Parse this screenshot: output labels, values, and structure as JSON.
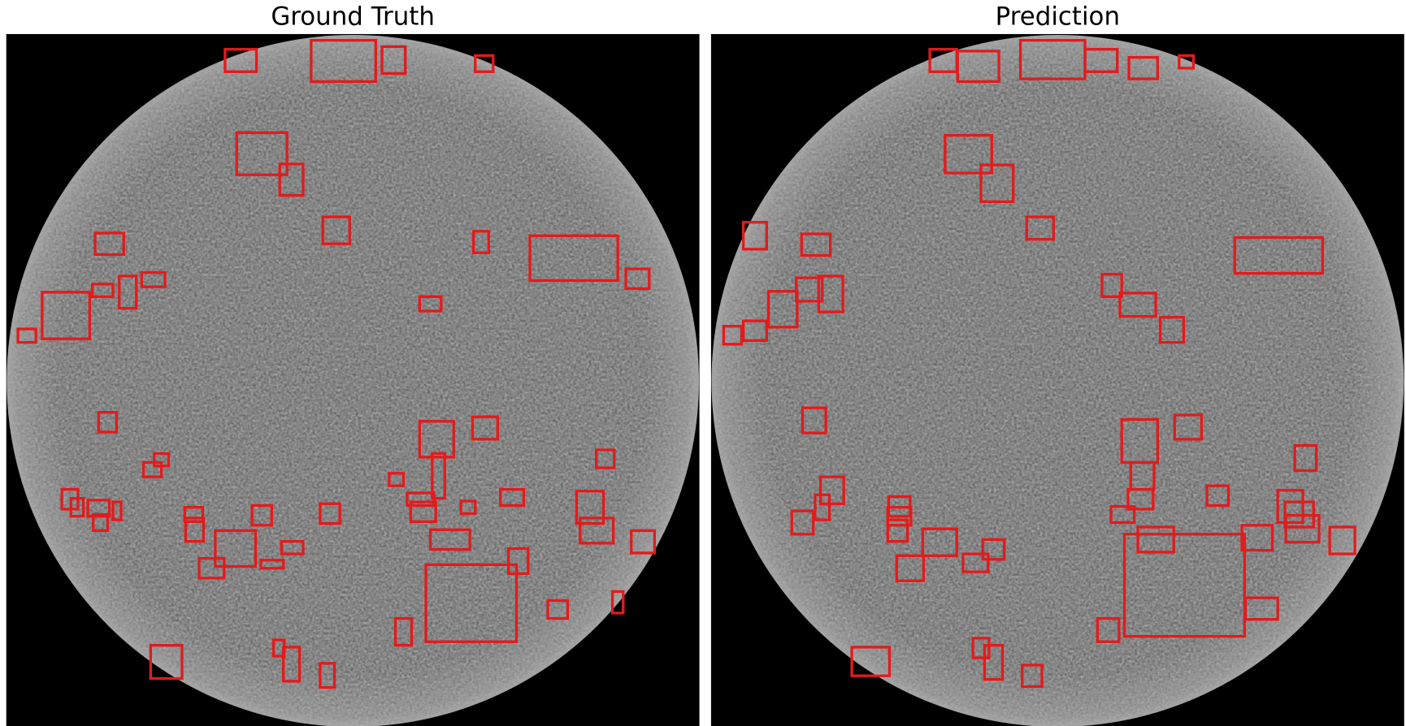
{
  "panels": [
    {
      "title": "Ground Truth"
    },
    {
      "title": "Prediction"
    }
  ]
}
